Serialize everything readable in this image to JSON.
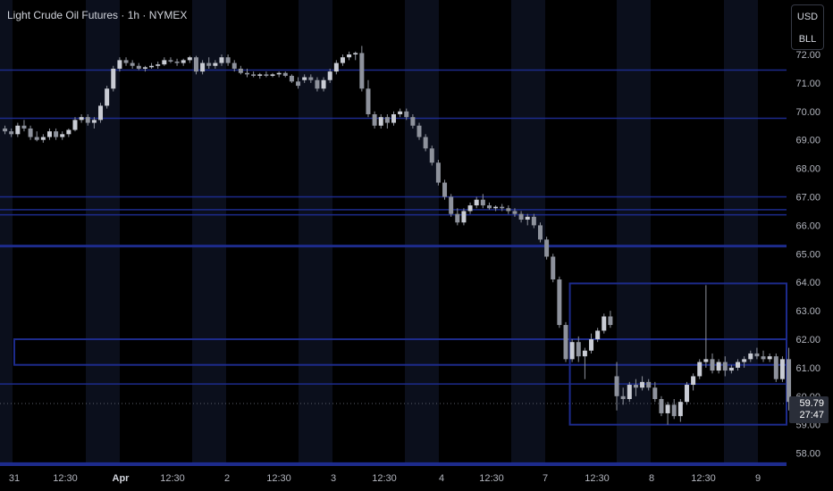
{
  "header": {
    "title": "Light Crude Oil Futures · 1h · NYMEX",
    "currency_top": "USD",
    "currency_bottom": "BLL"
  },
  "price_tag": {
    "price": "59.79",
    "countdown": "27:47"
  },
  "colors": {
    "background": "#000000",
    "session_band": "#0b0f1c",
    "level_line": "#1d2b8c",
    "candle": "#8e929c",
    "axis_text": "#b2b5be"
  },
  "chart_data": {
    "type": "candlestick",
    "title": "Light Crude Oil Futures · 1h · NYMEX",
    "ylim": [
      57.55,
      72.45
    ],
    "y_ticks": [
      "58.00",
      "59.00",
      "60.00",
      "61.00",
      "62.00",
      "63.00",
      "64.00",
      "65.00",
      "66.00",
      "67.00",
      "68.00",
      "69.00",
      "70.00",
      "71.00",
      "72.00"
    ],
    "x_ticks": [
      "31",
      "12:30",
      "Apr",
      "12:30",
      "2",
      "12:30",
      "3",
      "12:30",
      "4",
      "12:30",
      "7",
      "12:30",
      "8",
      "12:30",
      "9"
    ],
    "bar_count": 124,
    "levels": [
      71.45,
      69.76,
      67.0,
      66.55,
      66.37,
      65.27,
      60.43,
      57.63
    ],
    "zones": [
      {
        "top": 62.0,
        "bottom": 61.1,
        "from_bar": 0,
        "to_bar": 124
      },
      {
        "top": 63.96,
        "bottom": 59.0,
        "from_bar": 89,
        "to_bar": 124
      }
    ],
    "candles": [
      [
        69.4,
        69.5,
        69.2,
        69.3
      ],
      [
        69.3,
        69.4,
        69.1,
        69.2
      ],
      [
        69.2,
        69.6,
        69.1,
        69.5
      ],
      [
        69.5,
        69.7,
        69.3,
        69.4
      ],
      [
        69.4,
        69.5,
        69.0,
        69.1
      ],
      [
        69.1,
        69.3,
        68.95,
        69.0
      ],
      [
        69.0,
        69.2,
        68.9,
        69.1
      ],
      [
        69.1,
        69.4,
        69.0,
        69.3
      ],
      [
        69.3,
        69.4,
        69.0,
        69.1
      ],
      [
        69.1,
        69.3,
        69.0,
        69.2
      ],
      [
        69.2,
        69.4,
        69.1,
        69.35
      ],
      [
        69.35,
        69.8,
        69.3,
        69.7
      ],
      [
        69.7,
        69.9,
        69.6,
        69.8
      ],
      [
        69.8,
        69.9,
        69.5,
        69.6
      ],
      [
        69.6,
        69.8,
        69.4,
        69.7
      ],
      [
        69.7,
        70.3,
        69.6,
        70.2
      ],
      [
        70.2,
        70.9,
        70.1,
        70.8
      ],
      [
        70.8,
        71.6,
        70.7,
        71.5
      ],
      [
        71.5,
        71.9,
        71.4,
        71.8
      ],
      [
        71.8,
        71.9,
        71.6,
        71.7
      ],
      [
        71.7,
        71.8,
        71.5,
        71.6
      ],
      [
        71.6,
        71.7,
        71.45,
        71.5
      ],
      [
        71.5,
        71.6,
        71.4,
        71.55
      ],
      [
        71.55,
        71.7,
        71.5,
        71.6
      ],
      [
        71.6,
        71.75,
        71.5,
        71.65
      ],
      [
        71.65,
        71.9,
        71.6,
        71.8
      ],
      [
        71.8,
        71.9,
        71.7,
        71.75
      ],
      [
        71.75,
        71.85,
        71.6,
        71.7
      ],
      [
        71.7,
        71.85,
        71.6,
        71.8
      ],
      [
        71.8,
        71.95,
        71.7,
        71.9
      ],
      [
        71.9,
        71.95,
        71.3,
        71.4
      ],
      [
        71.4,
        71.8,
        71.3,
        71.7
      ],
      [
        71.7,
        71.9,
        71.5,
        71.6
      ],
      [
        71.6,
        71.8,
        71.5,
        71.7
      ],
      [
        71.7,
        72.0,
        71.6,
        71.9
      ],
      [
        71.9,
        72.0,
        71.6,
        71.7
      ],
      [
        71.7,
        71.8,
        71.4,
        71.5
      ],
      [
        71.5,
        71.6,
        71.3,
        71.35
      ],
      [
        71.35,
        71.5,
        71.2,
        71.3
      ],
      [
        71.3,
        71.4,
        71.2,
        71.25
      ],
      [
        71.25,
        71.35,
        71.15,
        71.3
      ],
      [
        71.3,
        71.4,
        71.2,
        71.25
      ],
      [
        71.25,
        71.35,
        71.2,
        71.3
      ],
      [
        71.3,
        71.4,
        71.2,
        71.35
      ],
      [
        71.35,
        71.4,
        71.2,
        71.25
      ],
      [
        71.25,
        71.3,
        71.0,
        71.05
      ],
      [
        71.05,
        71.2,
        70.8,
        70.9
      ],
      [
        71.1,
        71.3,
        71.0,
        71.2
      ],
      [
        71.2,
        71.3,
        71.0,
        71.1
      ],
      [
        71.1,
        71.2,
        70.7,
        70.8
      ],
      [
        70.8,
        71.2,
        70.7,
        71.1
      ],
      [
        71.1,
        71.5,
        71.0,
        71.4
      ],
      [
        71.4,
        71.8,
        71.3,
        71.7
      ],
      [
        71.7,
        72.0,
        71.6,
        71.9
      ],
      [
        71.9,
        72.1,
        71.8,
        72.0
      ],
      [
        72.0,
        72.1,
        71.8,
        72.05
      ],
      [
        72.05,
        72.3,
        70.7,
        70.8
      ],
      [
        70.8,
        71.1,
        69.8,
        69.9
      ],
      [
        69.9,
        70.0,
        69.4,
        69.5
      ],
      [
        69.5,
        69.9,
        69.4,
        69.8
      ],
      [
        69.8,
        69.9,
        69.4,
        69.6
      ],
      [
        69.6,
        70.0,
        69.5,
        69.9
      ],
      [
        69.9,
        70.1,
        69.8,
        70.0
      ],
      [
        70.0,
        70.1,
        69.7,
        69.8
      ],
      [
        69.8,
        69.9,
        69.4,
        69.5
      ],
      [
        69.5,
        69.6,
        69.0,
        69.1
      ],
      [
        69.1,
        69.2,
        68.6,
        68.7
      ],
      [
        68.7,
        68.8,
        68.1,
        68.2
      ],
      [
        68.2,
        68.3,
        67.4,
        67.5
      ],
      [
        67.5,
        67.6,
        66.9,
        67.0
      ],
      [
        67.0,
        67.1,
        66.3,
        66.4
      ],
      [
        66.4,
        66.6,
        66.0,
        66.1
      ],
      [
        66.1,
        66.6,
        66.0,
        66.5
      ],
      [
        66.5,
        66.8,
        66.4,
        66.7
      ],
      [
        66.7,
        67.0,
        66.6,
        66.9
      ],
      [
        66.9,
        67.1,
        66.6,
        66.7
      ],
      [
        66.7,
        66.8,
        66.55,
        66.6
      ],
      [
        66.6,
        66.7,
        66.5,
        66.65
      ],
      [
        66.65,
        66.75,
        66.5,
        66.6
      ],
      [
        66.6,
        66.7,
        66.4,
        66.5
      ],
      [
        66.5,
        66.6,
        66.3,
        66.4
      ],
      [
        66.4,
        66.5,
        66.1,
        66.2
      ],
      [
        66.2,
        66.4,
        66.0,
        66.3
      ],
      [
        66.3,
        66.4,
        65.9,
        66.0
      ],
      [
        66.0,
        66.1,
        65.4,
        65.5
      ],
      [
        65.5,
        65.6,
        64.8,
        64.9
      ],
      [
        64.9,
        65.0,
        64.0,
        64.1
      ],
      [
        64.1,
        64.2,
        62.4,
        62.5
      ],
      [
        62.5,
        62.6,
        61.2,
        61.3
      ],
      [
        61.3,
        62.0,
        61.2,
        61.9
      ],
      [
        61.9,
        62.1,
        61.2,
        61.4
      ],
      [
        61.4,
        61.7,
        60.6,
        61.6
      ],
      [
        61.6,
        62.2,
        61.5,
        62.0
      ],
      [
        62.0,
        62.4,
        61.9,
        62.3
      ],
      [
        62.3,
        62.9,
        62.2,
        62.8
      ],
      [
        62.8,
        63.0,
        62.4,
        62.5
      ],
      [
        60.7,
        61.2,
        59.5,
        60.0
      ],
      [
        60.0,
        60.3,
        59.7,
        59.9
      ],
      [
        59.9,
        60.5,
        59.8,
        60.4
      ],
      [
        60.4,
        60.6,
        60.0,
        60.3
      ],
      [
        60.3,
        60.7,
        60.2,
        60.5
      ],
      [
        60.5,
        60.6,
        60.2,
        60.3
      ],
      [
        60.3,
        60.5,
        59.8,
        59.9
      ],
      [
        59.9,
        60.0,
        59.3,
        59.4
      ],
      [
        59.4,
        59.8,
        59.0,
        59.7
      ],
      [
        59.7,
        59.9,
        59.2,
        59.3
      ],
      [
        59.3,
        59.9,
        59.1,
        59.8
      ],
      [
        59.8,
        60.5,
        59.7,
        60.4
      ],
      [
        60.4,
        60.8,
        60.2,
        60.7
      ],
      [
        60.7,
        61.3,
        60.6,
        61.2
      ],
      [
        61.2,
        63.9,
        61.0,
        61.3
      ],
      [
        61.3,
        61.5,
        60.8,
        60.9
      ],
      [
        60.9,
        61.3,
        60.8,
        61.2
      ],
      [
        61.2,
        61.4,
        60.7,
        60.9
      ],
      [
        60.9,
        61.1,
        60.8,
        61.0
      ],
      [
        61.0,
        61.3,
        60.9,
        61.2
      ],
      [
        61.2,
        61.4,
        61.0,
        61.3
      ],
      [
        61.3,
        61.6,
        61.2,
        61.5
      ],
      [
        61.5,
        61.7,
        61.3,
        61.4
      ],
      [
        61.4,
        61.6,
        61.2,
        61.3
      ],
      [
        61.3,
        61.5,
        61.2,
        61.4
      ],
      [
        61.4,
        61.5,
        60.5,
        60.6
      ],
      [
        60.6,
        61.4,
        60.5,
        61.3
      ],
      [
        61.3,
        61.7,
        59.5,
        59.8
      ]
    ]
  }
}
